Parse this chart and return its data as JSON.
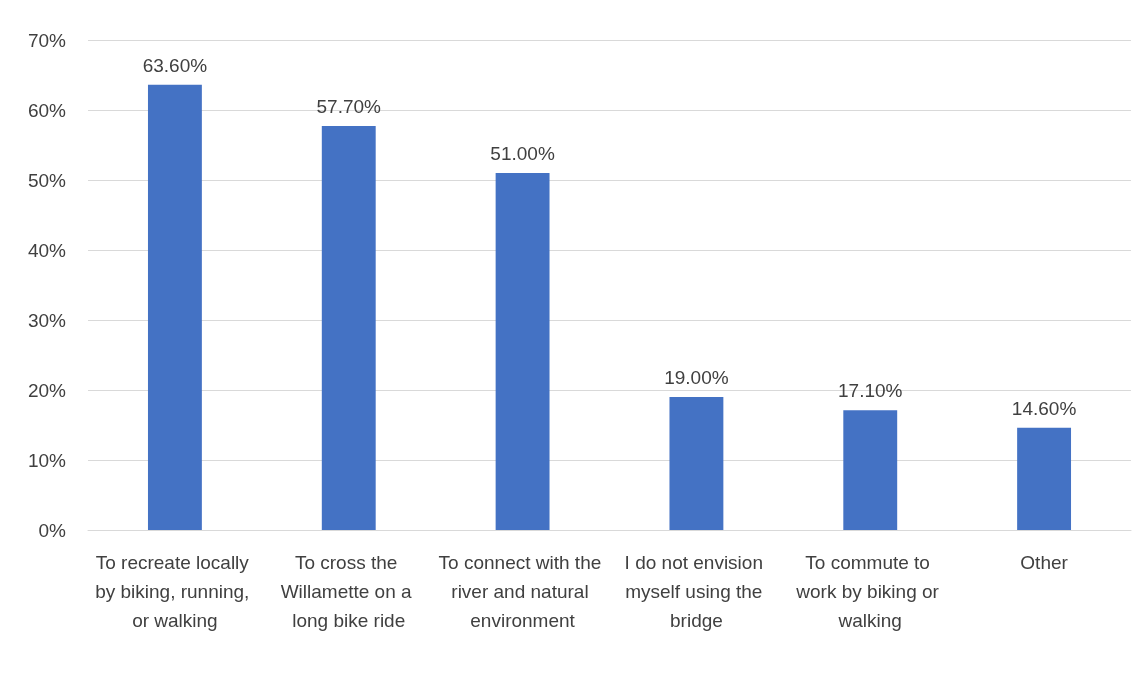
{
  "chart_data": {
    "type": "bar",
    "categories": [
      "To recreate locally by biking, running, or walking",
      "To cross the Willamette on a long bike ride",
      "To connect with the river and natural environment",
      "I do not envision myself using the bridge",
      "To commute to work by biking or walking",
      "Other"
    ],
    "values": [
      63.6,
      57.7,
      51.0,
      19.0,
      17.1,
      14.6
    ],
    "value_labels": [
      "63.60%",
      "57.70%",
      "51.00%",
      "19.00%",
      "17.10%",
      "14.60%"
    ],
    "color": "#4472c4",
    "ylim": [
      0,
      70
    ],
    "yticks": [
      {
        "value": 0,
        "label": "0%"
      },
      {
        "value": 10,
        "label": "10%"
      },
      {
        "value": 20,
        "label": "20%"
      },
      {
        "value": 30,
        "label": "30%"
      },
      {
        "value": 40,
        "label": "40%"
      },
      {
        "value": 50,
        "label": "50%"
      },
      {
        "value": 60,
        "label": "60%"
      },
      {
        "value": 70,
        "label": "70%"
      }
    ],
    "grid": "y"
  }
}
